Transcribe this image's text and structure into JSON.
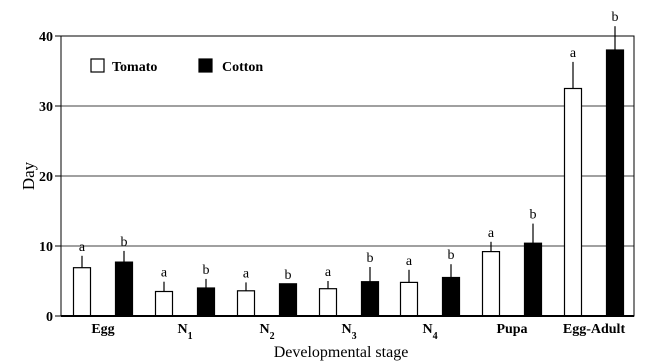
{
  "chart_data": {
    "type": "bar",
    "xlabel": "Developmental stage",
    "ylabel": "Day",
    "ylim": [
      0,
      40
    ],
    "yticks": [
      0,
      10,
      20,
      30,
      40
    ],
    "grid": "horizontal",
    "legend_position": "top-left",
    "categories": [
      "Egg",
      "N1",
      "N2",
      "N3",
      "N4",
      "Pupa",
      "Egg-Adult"
    ],
    "category_subscripts": [
      "",
      "1",
      "2",
      "3",
      "4",
      "",
      ""
    ],
    "series": [
      {
        "name": "Tomato",
        "color": "#ffffff",
        "values": [
          6.9,
          3.5,
          3.6,
          3.9,
          4.8,
          9.2,
          32.5
        ],
        "errors": [
          1.7,
          1.4,
          1.2,
          1.1,
          1.8,
          1.4,
          3.8
        ],
        "significance": [
          "a",
          "a",
          "a",
          "a",
          "a",
          "a",
          "a"
        ]
      },
      {
        "name": "Cotton",
        "color": "#000000",
        "values": [
          7.7,
          4.0,
          4.6,
          4.9,
          5.5,
          10.4,
          38.0
        ],
        "errors": [
          1.6,
          1.3,
          0,
          2.1,
          1.9,
          2.8,
          3.4
        ],
        "significance": [
          "b",
          "b",
          "b",
          "b",
          "b",
          "b",
          "b"
        ]
      }
    ]
  }
}
